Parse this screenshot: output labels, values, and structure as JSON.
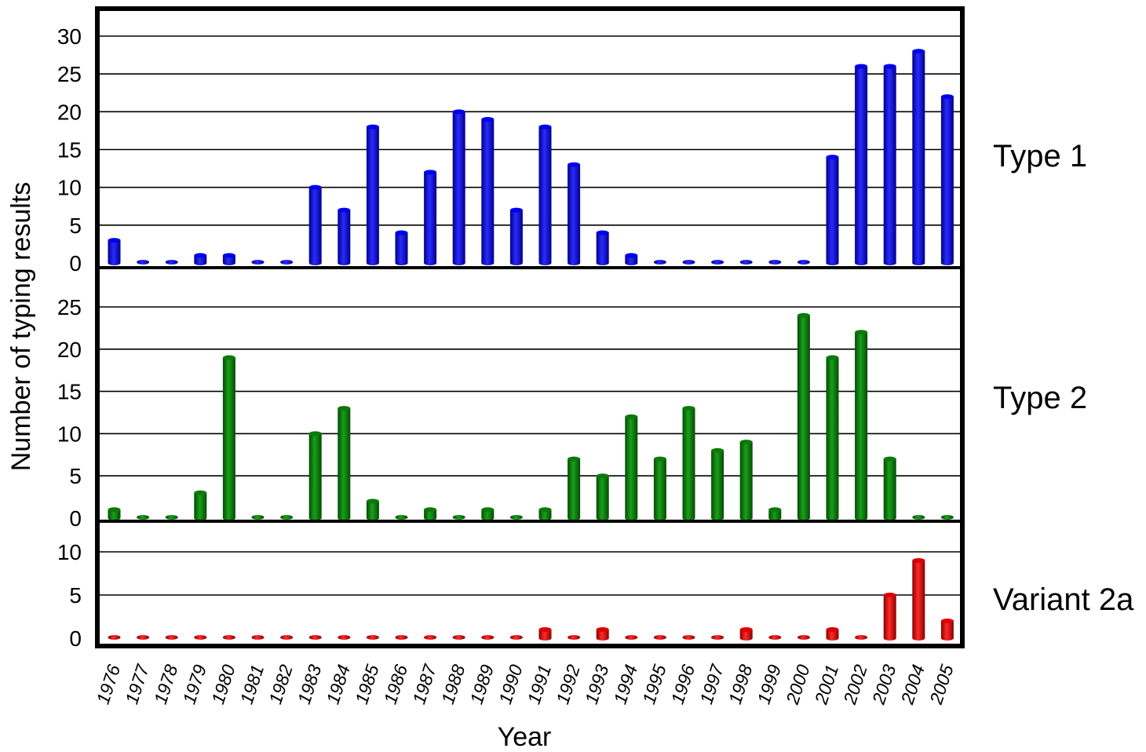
{
  "chart_data": {
    "type": "bar",
    "xlabel": "Year",
    "ylabel": "Number of typing results",
    "categories": [
      "1976",
      "1977",
      "1978",
      "1979",
      "1980",
      "1981",
      "1982",
      "1983",
      "1984",
      "1985",
      "1986",
      "1987",
      "1988",
      "1989",
      "1990",
      "1991",
      "1992",
      "1993",
      "1994",
      "1995",
      "1996",
      "1997",
      "1998",
      "1999",
      "2000",
      "2001",
      "2002",
      "2003",
      "2004",
      "2005"
    ],
    "grid": true,
    "panels": [
      {
        "name": "Type 1",
        "color": "#0000ee",
        "ylim": [
          0,
          30
        ],
        "yticks": [
          "0",
          "5",
          "10",
          "15",
          "20",
          "25",
          "30"
        ],
        "values": [
          3,
          0,
          0,
          1,
          1,
          0,
          0,
          10,
          7,
          18,
          4,
          12,
          20,
          19,
          7,
          18,
          13,
          4,
          1,
          0,
          0,
          0,
          0,
          0,
          0,
          14,
          26,
          26,
          28,
          22
        ]
      },
      {
        "name": "Type 2",
        "color": "#0b7a0b",
        "ylim": [
          0,
          25
        ],
        "yticks": [
          "0",
          "5",
          "10",
          "15",
          "20",
          "25"
        ],
        "values": [
          1,
          0,
          0,
          3,
          19,
          0,
          0,
          10,
          13,
          2,
          0,
          1,
          0,
          1,
          0,
          1,
          7,
          5,
          12,
          7,
          13,
          8,
          9,
          1,
          24,
          19,
          22,
          7,
          0,
          0
        ]
      },
      {
        "name": "Variant 2a",
        "color": "#dd0000",
        "ylim": [
          0,
          10
        ],
        "yticks": [
          "0",
          "5",
          "10"
        ],
        "values": [
          0,
          0,
          0,
          0,
          0,
          0,
          0,
          0,
          0,
          0,
          0,
          0,
          0,
          0,
          0,
          1,
          0,
          1,
          0,
          0,
          0,
          0,
          1,
          0,
          0,
          1,
          0,
          5,
          9,
          2
        ]
      }
    ]
  }
}
